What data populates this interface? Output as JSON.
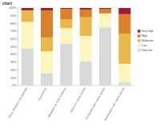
{
  "chart_data": {
    "type": "bar",
    "title": "chart",
    "stacked": true,
    "grid": false,
    "legend": "right",
    "categories": [
      "Pests, diseases and parasites",
      "Invasiveness",
      "Adaptation to local conditions",
      "Impact on native species",
      "Competition with native species",
      "Hybridisation with native species"
    ],
    "series": [
      {
        "name": "Very low",
        "color": "#d9d9d9",
        "values": [
          48,
          16,
          54,
          31,
          75,
          4
        ]
      },
      {
        "name": "Low",
        "color": "#fdf5c0",
        "values": [
          34,
          28,
          20,
          33,
          18,
          24
        ]
      },
      {
        "name": "Moderate",
        "color": "#e8b84a",
        "values": [
          15,
          18,
          11,
          24,
          0,
          39
        ]
      },
      {
        "name": "High",
        "color": "#d9822b",
        "values": [
          0,
          35,
          14,
          10,
          6,
          25
        ]
      },
      {
        "name": "Very high",
        "color": "#9e1b32",
        "values": [
          3,
          3,
          1,
          2,
          1,
          8
        ]
      }
    ],
    "ylim": [
      0,
      100
    ],
    "yticks": [
      {
        "value": 0,
        "label": "0%"
      },
      {
        "value": 10,
        "label": "10%"
      },
      {
        "value": 20,
        "label": "20%"
      },
      {
        "value": 30,
        "label": "30%"
      },
      {
        "value": 40,
        "label": "40%"
      },
      {
        "value": 50,
        "label": "50%"
      },
      {
        "value": 60,
        "label": "60%"
      },
      {
        "value": 70,
        "label": "70%"
      },
      {
        "value": 80,
        "label": "80%"
      },
      {
        "value": 90,
        "label": "90%"
      },
      {
        "value": 100,
        "label": "100%"
      }
    ]
  }
}
